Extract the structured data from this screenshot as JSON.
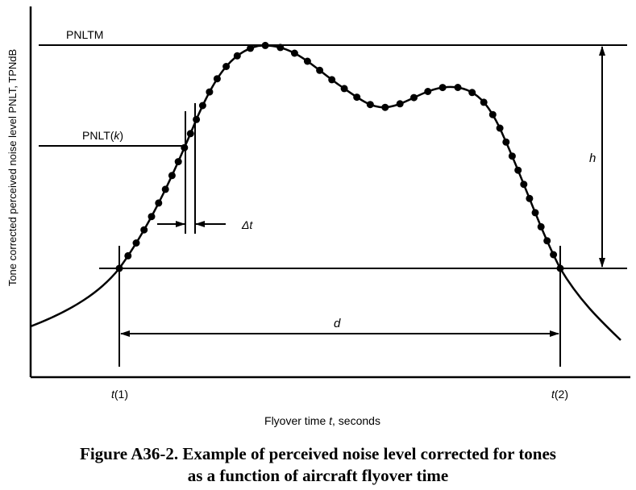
{
  "diagram": {
    "y_axis_label": "Tone corrected perceived noise level PNLT, TPNdB",
    "x_axis_label_pre": "Flyover time ",
    "x_axis_label_var": "t",
    "x_axis_label_post": ", seconds",
    "pnltm_label": "PNLTM",
    "pnltk_label_pre": "PNLT(",
    "pnltk_label_var": "k",
    "pnltk_label_post": ")",
    "delta_t_label": "Δt",
    "h_label": "h",
    "d_label": "d",
    "t1_label_var": "t",
    "t1_label_post": "(1)",
    "t2_label_var": "t",
    "t2_label_post": "(2)"
  },
  "caption": {
    "line1": "Figure A36-2.  Example of perceived noise level corrected for tones",
    "line2": "as a function of aircraft flyover time"
  }
}
